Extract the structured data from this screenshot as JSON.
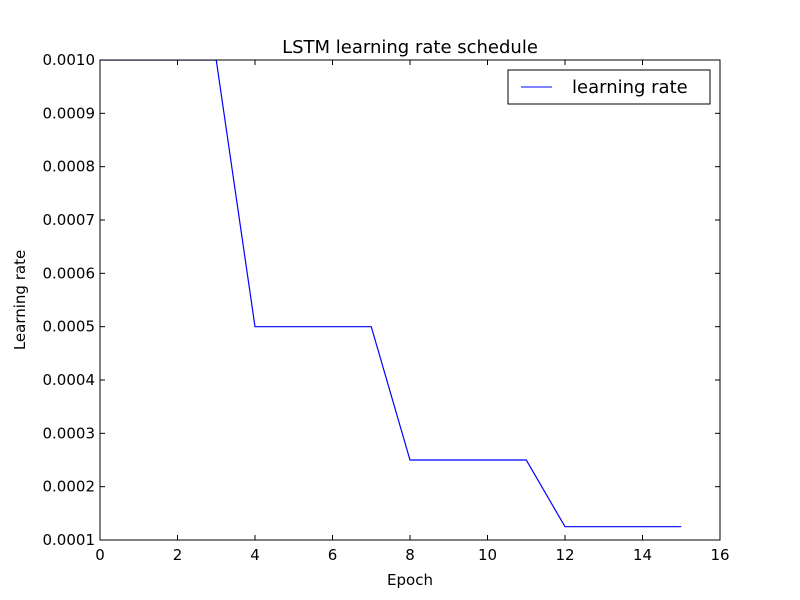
{
  "chart_data": {
    "type": "line",
    "title": "LSTM learning rate schedule",
    "xlabel": "Epoch",
    "ylabel": "Learning rate",
    "xlim": [
      0,
      16
    ],
    "ylim": [
      0.0001,
      0.001
    ],
    "xticks": [
      "0",
      "2",
      "4",
      "6",
      "8",
      "10",
      "12",
      "14",
      "16"
    ],
    "yticks": [
      "0.0001",
      "0.0002",
      "0.0003",
      "0.0004",
      "0.0005",
      "0.0006",
      "0.0007",
      "0.0008",
      "0.0009",
      "0.0010"
    ],
    "grid": false,
    "legend_position": "top-right",
    "series": [
      {
        "name": "learning rate",
        "color": "#0000ff",
        "x": [
          0,
          1,
          2,
          3,
          4,
          5,
          6,
          7,
          8,
          9,
          10,
          11,
          12,
          13,
          14,
          15
        ],
        "y": [
          0.001,
          0.001,
          0.001,
          0.001,
          0.0005,
          0.0005,
          0.0005,
          0.0005,
          0.00025,
          0.00025,
          0.00025,
          0.00025,
          0.000125,
          0.000125,
          0.000125,
          0.000125
        ]
      }
    ]
  }
}
